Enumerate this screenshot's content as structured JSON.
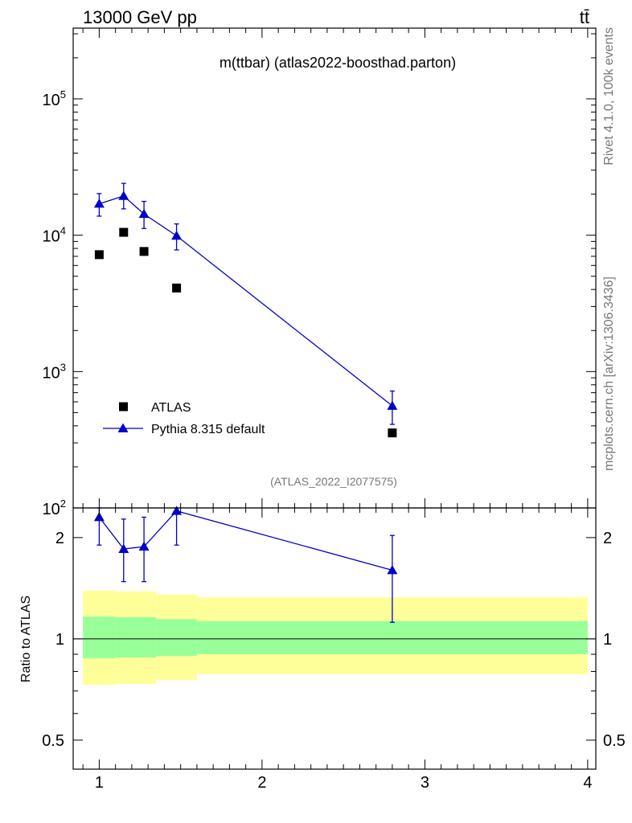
{
  "header": {
    "energy_label": "13000 GeV pp",
    "process_label": "tt̄"
  },
  "side_labels": {
    "rivet": "Rivet 4.1.0,  100k events",
    "mcplots": "mcplots.cern.ch [arXiv:1306.3436]"
  },
  "chart_data": [
    {
      "type": "scatter",
      "title": "m(ttbar)  (atlas2022-boosthad.parton)",
      "analysis_label": "(ATLAS_2022_I2077575)",
      "yscale": "log",
      "ylim": [
        100,
        330000
      ],
      "xlim": [
        0.84,
        4.05
      ],
      "y_ticks": [
        {
          "value": 100,
          "mantissa": "10",
          "exponent": "2"
        },
        {
          "value": 1000,
          "mantissa": "10",
          "exponent": "3"
        },
        {
          "value": 10000,
          "mantissa": "10",
          "exponent": "4"
        },
        {
          "value": 100000,
          "mantissa": "10",
          "exponent": "5"
        }
      ],
      "legend_position": "bottom-left",
      "series": [
        {
          "name": "ATLAS",
          "marker": "square",
          "color": "#000000",
          "points": [
            {
              "x": 1.0,
              "y": 7200
            },
            {
              "x": 1.15,
              "y": 10500
            },
            {
              "x": 1.275,
              "y": 7600
            },
            {
              "x": 1.475,
              "y": 4100
            },
            {
              "x": 2.8,
              "y": 355
            }
          ]
        },
        {
          "name": "Pythia 8.315 default",
          "marker": "triangle",
          "color": "#0000cc",
          "line": true,
          "points": [
            {
              "x": 1.0,
              "y": 17000,
              "ylo": 13800,
              "yhi": 20200
            },
            {
              "x": 1.15,
              "y": 19400,
              "ylo": 15600,
              "yhi": 24000
            },
            {
              "x": 1.275,
              "y": 14300,
              "ylo": 11200,
              "yhi": 17700
            },
            {
              "x": 1.475,
              "y": 9900,
              "ylo": 7800,
              "yhi": 12100
            },
            {
              "x": 2.8,
              "y": 560,
              "ylo": 410,
              "yhi": 720
            }
          ]
        }
      ]
    },
    {
      "type": "scatter",
      "ylabel": "Ratio to ATLAS",
      "yscale": "log",
      "ylim": [
        0.41,
        2.45
      ],
      "xlim": [
        0.84,
        4.05
      ],
      "x_ticks": [
        {
          "value": 1,
          "label": "1"
        },
        {
          "value": 2,
          "label": "2"
        },
        {
          "value": 3,
          "label": "3"
        },
        {
          "value": 4,
          "label": "4"
        }
      ],
      "y_ticks": [
        {
          "value": 0.5,
          "label": "0.5"
        },
        {
          "value": 1,
          "label": "1"
        },
        {
          "value": 2,
          "label": "2"
        }
      ],
      "reference_line": 1,
      "uncertainty_bands": [
        {
          "x0": 0.9,
          "x1": 1.1,
          "yellow": [
            0.73,
            1.39
          ],
          "green": [
            0.875,
            1.165
          ]
        },
        {
          "x0": 1.1,
          "x1": 1.35,
          "yellow": [
            0.735,
            1.385
          ],
          "green": [
            0.88,
            1.16
          ]
        },
        {
          "x0": 1.35,
          "x1": 1.6,
          "yellow": [
            0.755,
            1.355
          ],
          "green": [
            0.89,
            1.145
          ]
        },
        {
          "x0": 1.6,
          "x1": 4.0,
          "yellow": [
            0.785,
            1.33
          ],
          "green": [
            0.9,
            1.13
          ]
        }
      ],
      "series": [
        {
          "name": "Pythia 8.315 default",
          "marker": "triangle",
          "color": "#0000cc",
          "line": true,
          "points": [
            {
              "x": 1.0,
              "y": 2.3,
              "ylo": 1.9,
              "yhi": 2.45
            },
            {
              "x": 1.15,
              "y": 1.85,
              "ylo": 1.48,
              "yhi": 2.27
            },
            {
              "x": 1.275,
              "y": 1.88,
              "ylo": 1.48,
              "yhi": 2.3
            },
            {
              "x": 1.475,
              "y": 2.4,
              "ylo": 1.9,
              "yhi": 2.45
            },
            {
              "x": 2.8,
              "y": 1.6,
              "ylo": 1.12,
              "yhi": 2.03
            }
          ]
        }
      ]
    }
  ]
}
